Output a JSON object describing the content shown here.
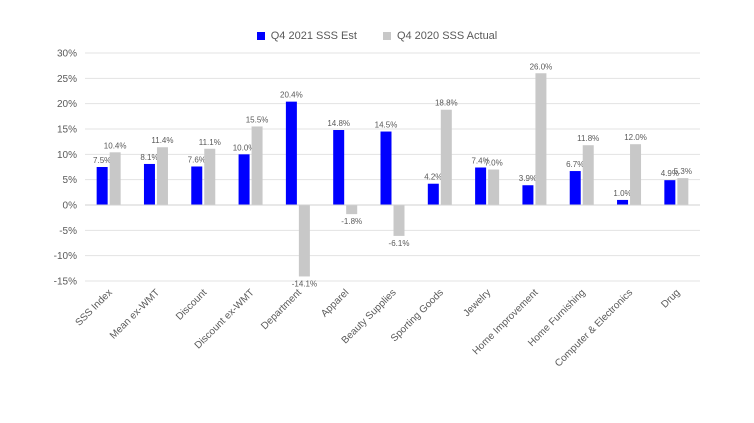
{
  "chart_data": {
    "type": "bar",
    "categories": [
      "SSS Index",
      "Mean ex-WMT",
      "Discount",
      "Discount ex-WMT",
      "Department",
      "Apparel",
      "Beauty Supplies",
      "Sporting Goods",
      "Jewelry",
      "Home Improvement",
      "Home Furnishing",
      "Computer & Electronics",
      "Drug"
    ],
    "series": [
      {
        "name": "Q4 2021 SSS Est",
        "color": "#0000ff",
        "values": [
          7.5,
          8.1,
          7.6,
          10.0,
          20.4,
          14.8,
          14.5,
          4.2,
          7.4,
          3.9,
          6.7,
          1.0,
          4.9
        ],
        "labels": [
          "7.5%",
          "8.1%",
          "7.6%",
          "10.0%",
          "20.4%",
          "14.8%",
          "14.5%",
          "4.2%",
          "7.4%",
          "3.9%",
          "6.7%",
          "1.0%",
          "4.9%"
        ]
      },
      {
        "name": "Q4 2020 SSS Actual",
        "color": "#c8c8c8",
        "values": [
          10.4,
          11.4,
          11.1,
          15.5,
          -14.1,
          -1.8,
          -6.1,
          18.8,
          7.0,
          26.0,
          11.8,
          12.0,
          5.3
        ],
        "labels": [
          "10.4%",
          "11.4%",
          "11.1%",
          "15.5%",
          "-14.1%",
          "-1.8%",
          "-6.1%",
          "18.8%",
          "7.0%",
          "26.0%",
          "11.8%",
          "12.0%",
          "5.3%"
        ]
      }
    ],
    "yticks": [
      30,
      25,
      20,
      15,
      10,
      5,
      0,
      -5,
      -10,
      -15
    ],
    "ytick_labels": [
      "30%",
      "25%",
      "20%",
      "15%",
      "10%",
      "5%",
      "0%",
      "-5%",
      "-10%",
      "-15%"
    ],
    "ylim": [
      -15,
      30
    ],
    "legend_position": "top-center",
    "grid": true,
    "title": "",
    "xlabel": "",
    "ylabel": ""
  }
}
